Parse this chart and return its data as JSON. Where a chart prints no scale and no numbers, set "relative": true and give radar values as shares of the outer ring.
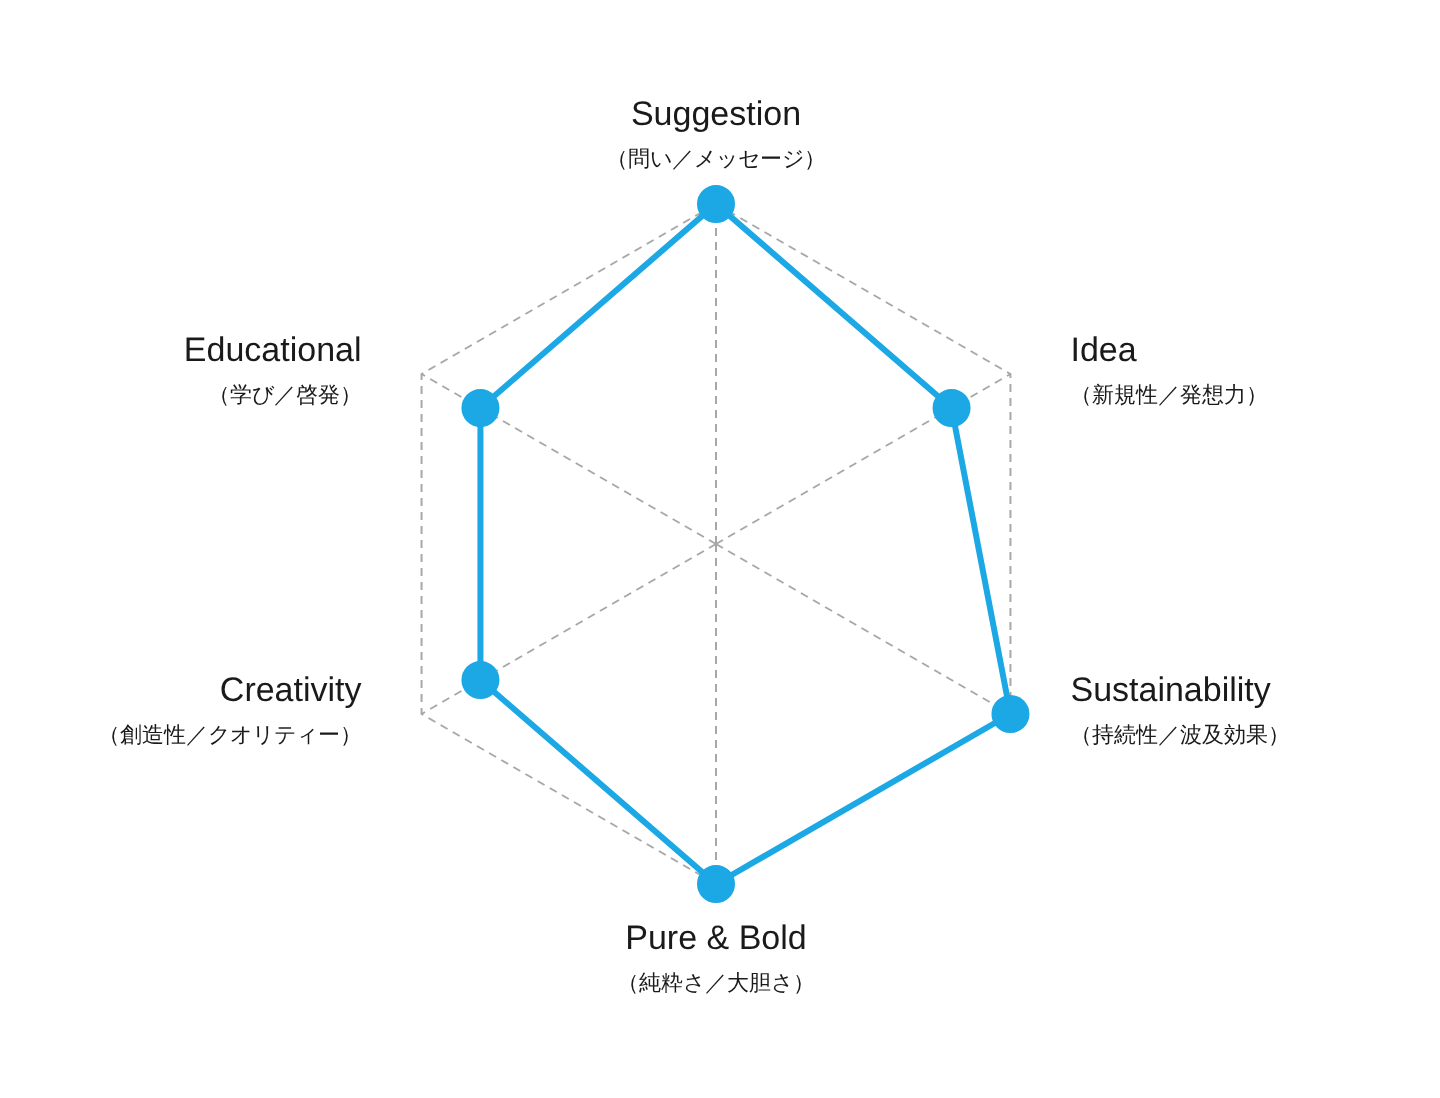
{
  "chart_data": {
    "type": "radar",
    "relative": true,
    "categories": [
      "Suggestion\n（問い／メッセージ）",
      "Idea\n（新規性／発想力）",
      "Sustainability\n（持続性／波及効果）",
      "Pure & Bold\n（純粋さ／大胆さ）",
      "Creativity\n（創造性／クオリティー）",
      "Educational\n（学び／啓発）"
    ],
    "series": [
      {
        "color": "#1ba8e5",
        "values": [
          1,
          0.8,
          1,
          1,
          0.8,
          0.8
        ]
      }
    ],
    "grid": true,
    "legend": false,
    "marker": "circle"
  }
}
